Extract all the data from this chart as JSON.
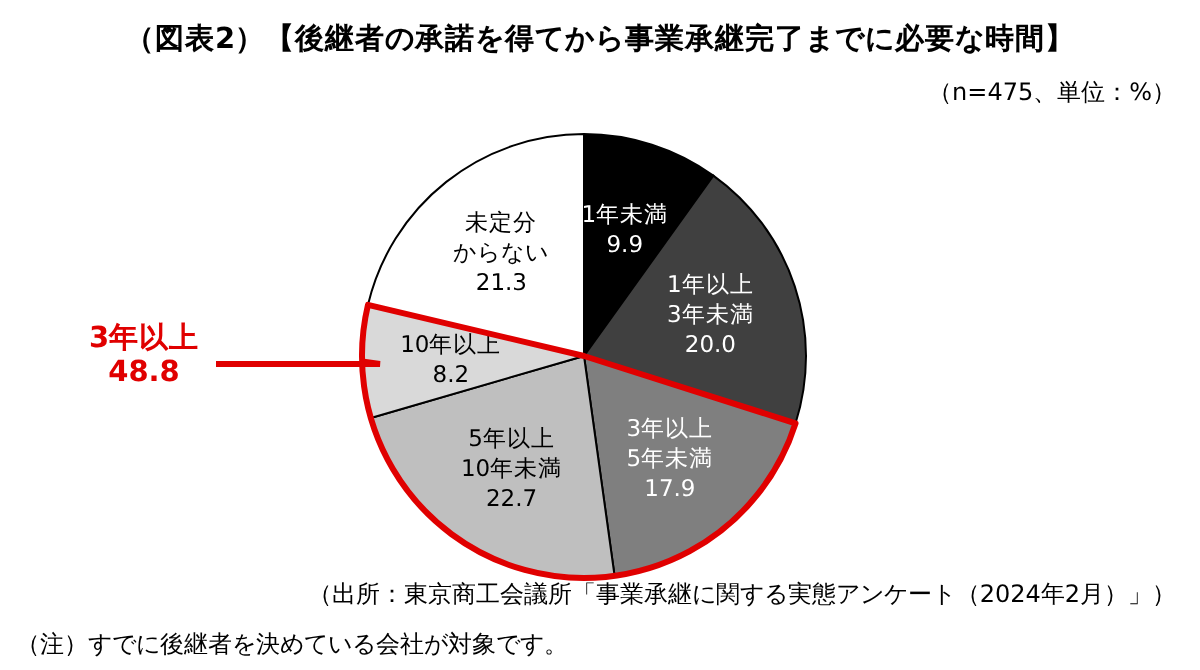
{
  "chart_data": {
    "type": "pie",
    "title": "（図表2）【後継者の承諾を得てから事業承継完了までに必要な時間】",
    "subtitle": "（n=475、単位：%）",
    "categories": [
      "1年未満",
      "1年以上3年未満",
      "3年以上5年未満",
      "5年以上10年未満",
      "10年以上",
      "未定分からない"
    ],
    "values": [
      9.9,
      20.0,
      17.9,
      22.7,
      8.2,
      21.3
    ],
    "value_labels": [
      "9.9",
      "20.0",
      "17.9",
      "22.7",
      "8.2",
      "21.3"
    ],
    "colors": [
      "#000000",
      "#404040",
      "#7f7f7f",
      "#bfbfbf",
      "#d9d9d9",
      "#ffffff"
    ],
    "annotations": [
      "3年以上\n48.8",
      "（出所：東京商工会議所「事業承継に関する実態アンケート（2024年2月）」）",
      "（注）すでに後継者を決めている会社が対象です。"
    ]
  }
}
